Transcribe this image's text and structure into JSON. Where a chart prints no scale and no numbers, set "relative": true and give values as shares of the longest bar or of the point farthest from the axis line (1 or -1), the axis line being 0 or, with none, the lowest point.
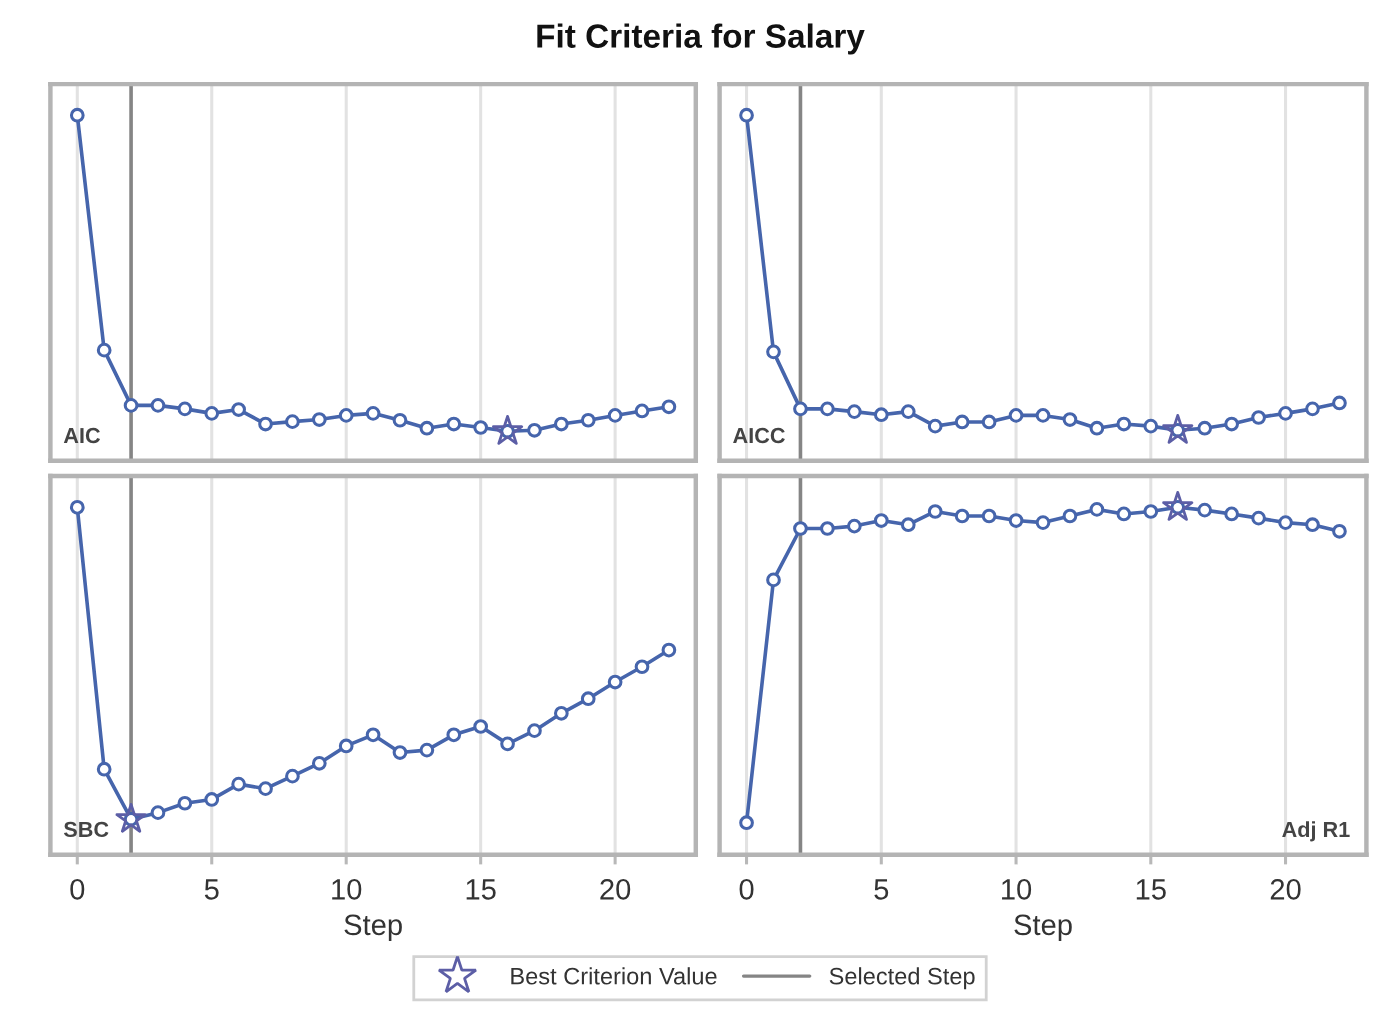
{
  "chart_data": [
    {
      "type": "line",
      "title": "Fit Criteria for Salary",
      "legend": "bottom",
      "x": [
        0,
        1,
        2,
        3,
        4,
        5,
        6,
        7,
        8,
        9,
        10,
        11,
        12,
        13,
        14,
        15,
        16,
        17,
        18,
        19,
        20,
        21,
        22
      ],
      "xlim": [
        -1,
        23
      ],
      "xticks": [
        0,
        5,
        10,
        15,
        20
      ],
      "relative": true,
      "grid": "x",
      "marker": "circle",
      "tick_labels": false,
      "annotations": [
        "AIC"
      ],
      "ref_lines": [
        {
          "axis": "x",
          "value": 2,
          "label": "Selected Step",
          "color": "#858585"
        }
      ],
      "series": [
        {
          "color": "#4665ac",
          "values": [
            1,
            0.32,
            0.16,
            0.16,
            0.15,
            0.137,
            0.148,
            0.106,
            0.113,
            0.119,
            0.131,
            0.137,
            0.117,
            0.094,
            0.106,
            0.096,
            0.085,
            0.088,
            0.106,
            0.117,
            0.131,
            0.144,
            0.156
          ]
        },
        {
          "type": "scatter",
          "name": "Best Criterion Value",
          "marker": "star",
          "color": "#5c5ea6",
          "values": [
            null,
            null,
            null,
            null,
            null,
            null,
            null,
            null,
            null,
            null,
            null,
            null,
            null,
            null,
            null,
            null,
            0.085,
            null,
            null,
            null,
            null,
            null,
            null
          ]
        }
      ]
    },
    {
      "type": "line",
      "x": [
        0,
        1,
        2,
        3,
        4,
        5,
        6,
        7,
        8,
        9,
        10,
        11,
        12,
        13,
        14,
        15,
        16,
        17,
        18,
        19,
        20,
        21,
        22
      ],
      "xlim": [
        -1,
        23
      ],
      "xticks": [
        0,
        5,
        10,
        15,
        20
      ],
      "relative": true,
      "grid": "x",
      "marker": "circle",
      "tick_labels": false,
      "annotations": [
        "AICC"
      ],
      "ref_lines": [
        {
          "axis": "x",
          "value": 2,
          "color": "#858585"
        }
      ],
      "series": [
        {
          "color": "#4665ac",
          "values": [
            1,
            0.315,
            0.15,
            0.15,
            0.142,
            0.133,
            0.142,
            0.1,
            0.112,
            0.112,
            0.131,
            0.131,
            0.119,
            0.094,
            0.106,
            0.1,
            0.088,
            0.094,
            0.106,
            0.125,
            0.137,
            0.15,
            0.167
          ]
        },
        {
          "type": "scatter",
          "marker": "star",
          "color": "#5c5ea6",
          "values": [
            null,
            null,
            null,
            null,
            null,
            null,
            null,
            null,
            null,
            null,
            null,
            null,
            null,
            null,
            null,
            null,
            0.088,
            null,
            null,
            null,
            null,
            null,
            null
          ]
        }
      ]
    },
    {
      "type": "line",
      "x": [
        0,
        1,
        2,
        3,
        4,
        5,
        6,
        7,
        8,
        9,
        10,
        11,
        12,
        13,
        14,
        15,
        16,
        17,
        18,
        19,
        20,
        21,
        22
      ],
      "xlim": [
        -1,
        23
      ],
      "xticks": [
        0,
        5,
        10,
        15,
        20
      ],
      "xlabel": "Step",
      "relative": true,
      "grid": "x",
      "marker": "circle",
      "tick_labels": "x",
      "annotations": [
        "SBC"
      ],
      "ref_lines": [
        {
          "axis": "x",
          "value": 2,
          "color": "#858585"
        }
      ],
      "series": [
        {
          "color": "#4665ac",
          "values": [
            1,
            0.246,
            0.102,
            0.121,
            0.148,
            0.159,
            0.203,
            0.19,
            0.226,
            0.263,
            0.313,
            0.345,
            0.294,
            0.301,
            0.345,
            0.369,
            0.319,
            0.357,
            0.407,
            0.449,
            0.497,
            0.541,
            0.589
          ]
        },
        {
          "type": "scatter",
          "marker": "star",
          "color": "#5c5ea6",
          "values": [
            null,
            null,
            0.102,
            null,
            null,
            null,
            null,
            null,
            null,
            null,
            null,
            null,
            null,
            null,
            null,
            null,
            null,
            null,
            null,
            null,
            null,
            null,
            null
          ]
        }
      ]
    },
    {
      "type": "line",
      "x": [
        0,
        1,
        2,
        3,
        4,
        5,
        6,
        7,
        8,
        9,
        10,
        11,
        12,
        13,
        14,
        15,
        16,
        17,
        18,
        19,
        20,
        21,
        22
      ],
      "xlim": [
        -1,
        23
      ],
      "xticks": [
        0,
        5,
        10,
        15,
        20
      ],
      "xlabel": "Step",
      "relative": true,
      "grid": "x",
      "marker": "circle",
      "tick_labels": "x",
      "annotations": [
        "Adj R1"
      ],
      "ref_lines": [
        {
          "axis": "x",
          "value": 2,
          "color": "#858585"
        }
      ],
      "series": [
        {
          "color": "#4665ac",
          "values": [
            0.092,
            0.791,
            0.939,
            0.939,
            0.946,
            0.962,
            0.95,
            0.988,
            0.975,
            0.975,
            0.962,
            0.956,
            0.975,
            0.994,
            0.981,
            0.988,
            1,
            0.992,
            0.981,
            0.969,
            0.956,
            0.95,
            0.931
          ]
        },
        {
          "type": "scatter",
          "marker": "star",
          "color": "#5c5ea6",
          "values": [
            null,
            null,
            null,
            null,
            null,
            null,
            null,
            null,
            null,
            null,
            null,
            null,
            null,
            null,
            null,
            null,
            1,
            null,
            null,
            null,
            null,
            null,
            null
          ]
        }
      ]
    }
  ]
}
